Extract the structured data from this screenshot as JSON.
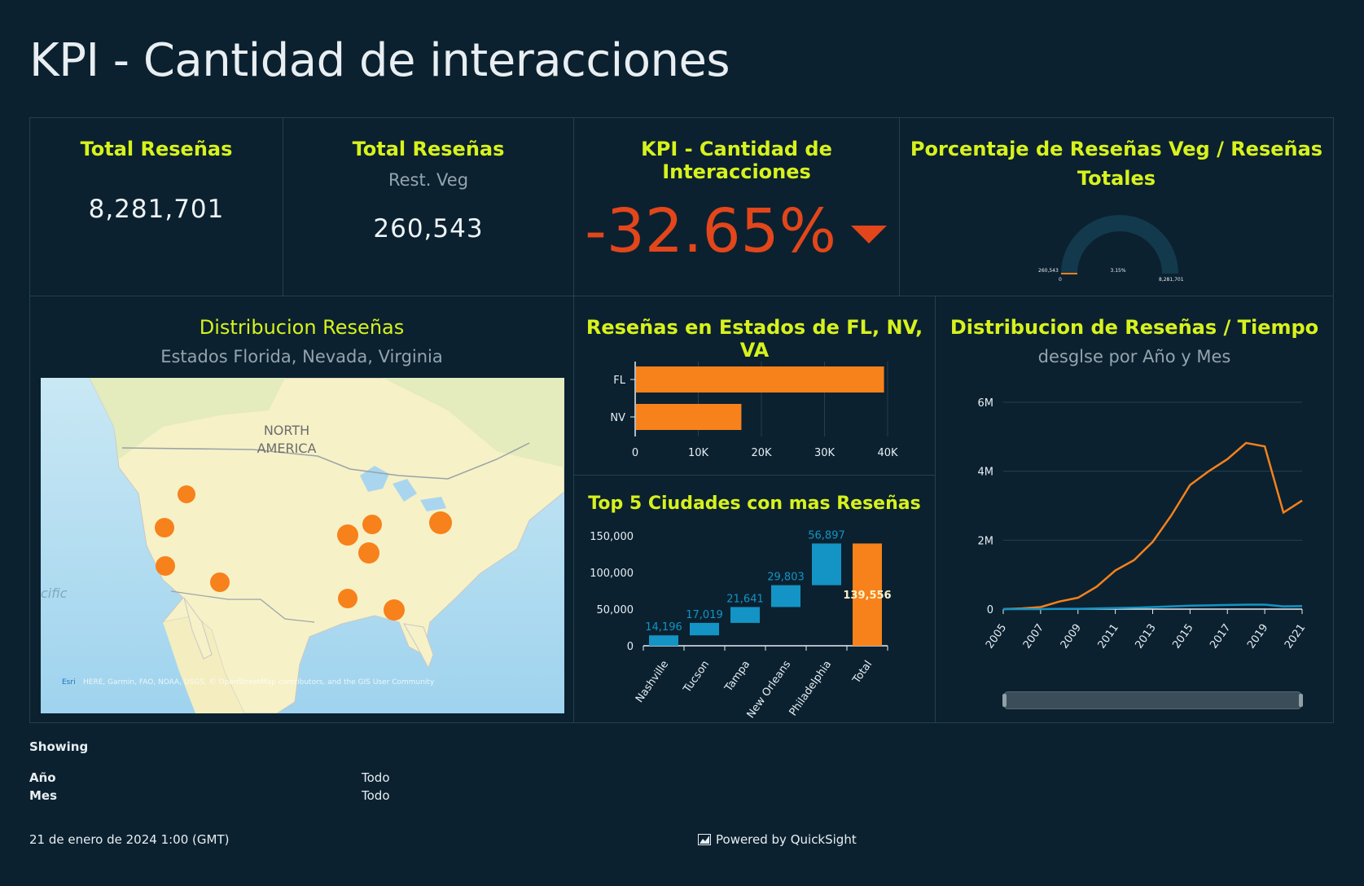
{
  "title": "KPI - Cantidad de interacciones",
  "kpis": {
    "total": {
      "title": "Total Reseñas",
      "value": "8,281,701"
    },
    "veg": {
      "title": "Total Reseñas",
      "subtitle": "Rest. Veg",
      "value": "260,543"
    },
    "interactions": {
      "title": "KPI - Cantidad de Interacciones",
      "value": "-32.65%",
      "trend": "down",
      "color": "#e2461a"
    },
    "gauge": {
      "title_line1": "Porcentaje de Reseñas Veg / Reseñas",
      "title_line2": "Totales",
      "min_label": "0",
      "left_label": "260,543",
      "center_label": "3.15%",
      "max_label": "8,281,701",
      "fraction": 0.0315
    }
  },
  "map": {
    "title": "Distribucion Reseñas",
    "subtitle": "Estados Florida, Nevada, Virginia",
    "label_continent_1": "NORTH",
    "label_continent_2": "AMERICA",
    "label_ocean": "cific",
    "attribution_esri": "Esri",
    "attribution": "HERE, Garmin, FAO, NOAA, USGS, © OpenStreetMap contributors, and the GIS User Community",
    "marker_color": "#f7811b"
  },
  "states_chart": {
    "title": "Reseñas en Estados de FL, NV, VA",
    "color": "#f7811b"
  },
  "cities_chart": {
    "title": "Top 5 Ciudades con mas Reseñas",
    "bar_color": "#1394c5",
    "total_color": "#f7811b"
  },
  "time_chart": {
    "title": "Distribucion de Reseñas / Tiempo",
    "subtitle": "desglse por Año y Mes",
    "line_color": "#f7811b",
    "second_line_color": "#1394c5"
  },
  "chart_data": [
    {
      "type": "bar",
      "orientation": "horizontal",
      "title": "Reseñas en Estados de FL, NV, VA",
      "categories": [
        "FL",
        "NV"
      ],
      "values": [
        39300,
        16700
      ],
      "xlim": [
        0,
        40000
      ],
      "xticks": [
        "0",
        "10K",
        "20K",
        "30K",
        "40K"
      ],
      "grid": true
    },
    {
      "type": "bar",
      "subtype": "waterfall",
      "title": "Top 5 Ciudades con mas Reseñas",
      "categories": [
        "Nashville",
        "Tucson",
        "Tampa",
        "New Orleans",
        "Philadelphia",
        "Total"
      ],
      "values": [
        14196,
        17019,
        21641,
        29803,
        56897,
        139556
      ],
      "labels": [
        "14,196",
        "17,019",
        "21,641",
        "29,803",
        "56,897",
        "139,556"
      ],
      "ylim": [
        0,
        150000
      ],
      "yticks": [
        "0",
        "50,000",
        "100,000",
        "150,000"
      ]
    },
    {
      "type": "line",
      "title": "Distribucion de Reseñas / Tiempo",
      "x": [
        2005,
        2006,
        2007,
        2008,
        2009,
        2010,
        2011,
        2012,
        2013,
        2014,
        2015,
        2016,
        2017,
        2018,
        2019,
        2020,
        2021
      ],
      "xticks": [
        "2005",
        "2007",
        "2009",
        "2011",
        "2013",
        "2015",
        "2017",
        "2019",
        "2021"
      ],
      "series": [
        {
          "values": [
            0.0,
            0.02,
            0.06,
            0.22,
            0.33,
            0.65,
            1.12,
            1.42,
            1.95,
            2.72,
            3.6,
            4.0,
            4.35,
            4.82,
            4.72,
            2.8,
            3.15
          ]
        },
        {
          "values": [
            0.0,
            0.0,
            0.0,
            0.01,
            0.01,
            0.02,
            0.03,
            0.04,
            0.06,
            0.08,
            0.1,
            0.11,
            0.12,
            0.13,
            0.13,
            0.08,
            0.09
          ]
        }
      ],
      "ylim": [
        0,
        6
      ],
      "yticks": [
        "0",
        "2M",
        "4M",
        "6M"
      ],
      "grid": true
    }
  ],
  "footer": {
    "showing_label": "Showing",
    "filters": [
      {
        "label": "Año",
        "value": "Todo"
      },
      {
        "label": "Mes",
        "value": "Todo"
      }
    ],
    "timestamp": "21 de enero de 2024 1:00 (GMT)",
    "powered": "Powered by QuickSight"
  }
}
